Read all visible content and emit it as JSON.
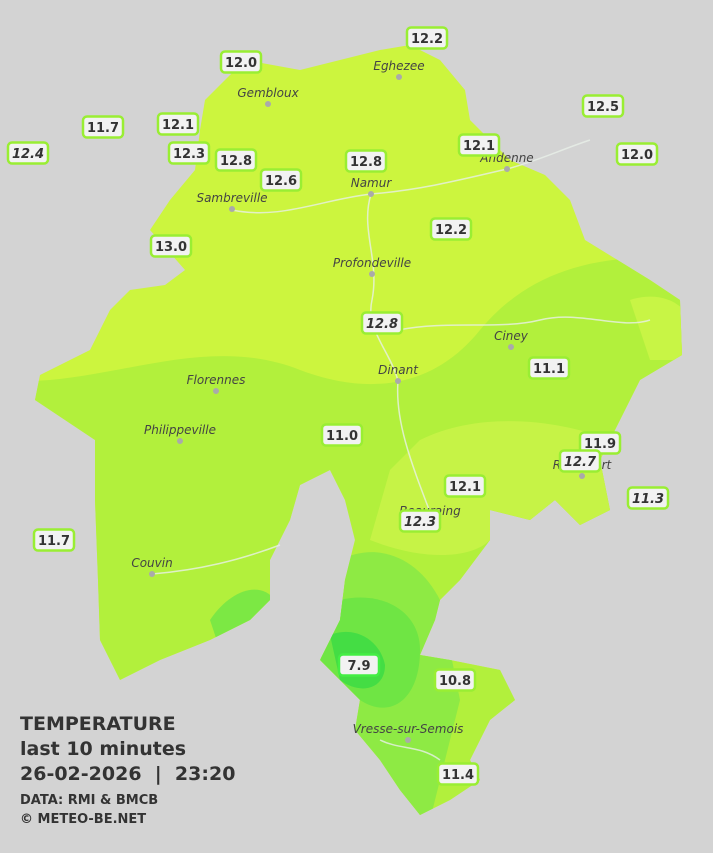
{
  "legend": {
    "title": "TEMPERATURE",
    "period": "last 10 minutes",
    "datetime": "26-02-2026  |  23:20",
    "source": "DATA: RMI & BMCB",
    "copyright": "© METEO-BE.NET"
  },
  "towns": [
    "Eghezee",
    "Gembloux",
    "Andenne",
    "Namur",
    "Sambreville",
    "Profondeville",
    "Ciney",
    "Dinant",
    "Florennes",
    "Philippeville",
    "Rochefort",
    "Beauraing",
    "Couvin",
    "Vresse-sur-Semois"
  ],
  "stations": [
    {
      "label": "12.2"
    },
    {
      "label": "12.0"
    },
    {
      "label": "11.7"
    },
    {
      "label": "12.1"
    },
    {
      "label": "12.4",
      "italic": true
    },
    {
      "label": "12.3"
    },
    {
      "label": "12.8"
    },
    {
      "label": "12.6"
    },
    {
      "label": "12.8"
    },
    {
      "label": "12.1"
    },
    {
      "label": "12.5"
    },
    {
      "label": "12.0"
    },
    {
      "label": "13.0"
    },
    {
      "label": "12.2"
    },
    {
      "label": "12.8",
      "italic": true
    },
    {
      "label": "11.1"
    },
    {
      "label": "11.0"
    },
    {
      "label": "11.9"
    },
    {
      "label": "12.7",
      "italic": true
    },
    {
      "label": "11.3",
      "italic": true
    },
    {
      "label": "12.1"
    },
    {
      "label": "12.3",
      "italic": true
    },
    {
      "label": "11.7"
    },
    {
      "label": "7.9",
      "border": "#44ee44"
    },
    {
      "label": "10.8"
    },
    {
      "label": "11.4"
    }
  ]
}
